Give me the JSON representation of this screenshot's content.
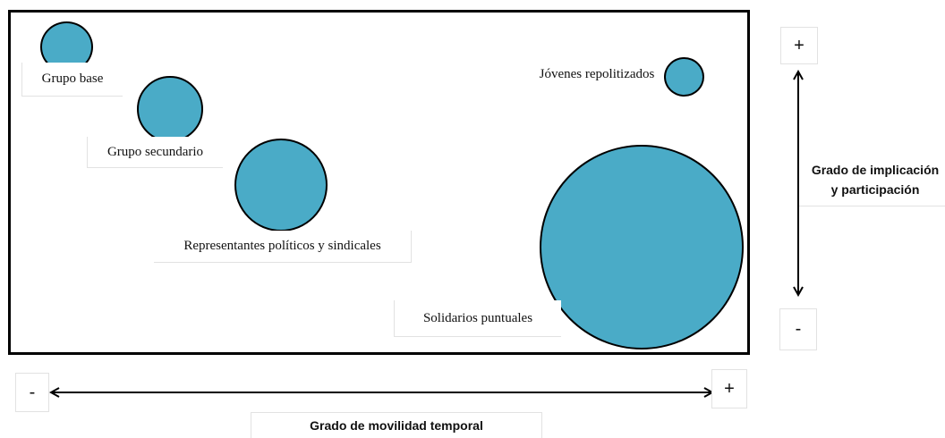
{
  "groups": [
    {
      "label": "Grupo base"
    },
    {
      "label": "Grupo secundario"
    },
    {
      "label": "Representantes políticos y sindicales"
    },
    {
      "label": "Jóvenes repolitizados"
    },
    {
      "label": "Solidarios puntuales"
    }
  ],
  "vertical_axis": {
    "label_line1": "Grado de implicación",
    "label_line2": "y participación",
    "plus": "+",
    "minus": "-"
  },
  "horizontal_axis": {
    "label": "Grado de movilidad temporal",
    "plus": "+",
    "minus": "-"
  },
  "colors": {
    "bubble_fill": "#4aabc7",
    "border": "#000000"
  }
}
